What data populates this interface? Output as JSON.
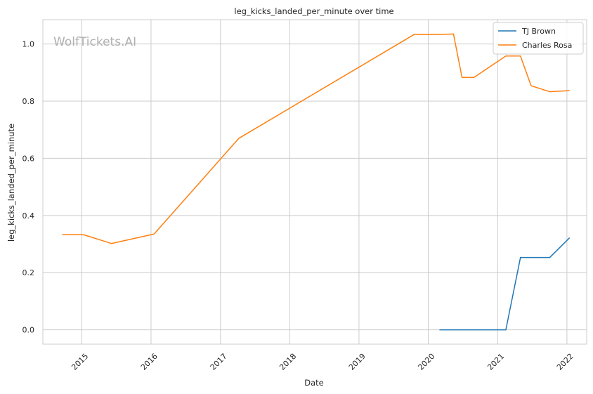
{
  "chart_data": {
    "type": "line",
    "title": "leg_kicks_landed_per_minute over time",
    "xlabel": "Date",
    "ylabel": "leg_kicks_landed_per_minute",
    "watermark": "WolfTickets.AI",
    "xlim": [
      "2014-06-10",
      "2022-04-15"
    ],
    "ylim": [
      -0.05,
      1.085
    ],
    "x_ticks": [
      "2015-01-01",
      "2016-01-01",
      "2017-01-01",
      "2018-01-01",
      "2019-01-01",
      "2020-01-01",
      "2021-01-01",
      "2022-01-01"
    ],
    "x_tick_labels": [
      "2015",
      "2016",
      "2017",
      "2018",
      "2019",
      "2020",
      "2021",
      "2022"
    ],
    "y_ticks": [
      0.0,
      0.2,
      0.4,
      0.6,
      0.8,
      1.0
    ],
    "y_tick_labels": [
      "0.0",
      "0.2",
      "0.4",
      "0.6",
      "0.8",
      "1.0"
    ],
    "grid": true,
    "legend_position": "top-right",
    "series": [
      {
        "name": "TJ Brown",
        "color": "#1f77b4",
        "points": [
          {
            "x": "2020-02-29",
            "y": 0.0
          },
          {
            "x": "2021-02-13",
            "y": 0.0
          },
          {
            "x": "2021-05-01",
            "y": 0.253
          },
          {
            "x": "2021-10-02",
            "y": 0.253
          },
          {
            "x": "2022-01-15",
            "y": 0.322
          }
        ]
      },
      {
        "name": "Charles Rosa",
        "color": "#ff7f0e",
        "points": [
          {
            "x": "2014-09-20",
            "y": 0.333
          },
          {
            "x": "2015-01-10",
            "y": 0.333
          },
          {
            "x": "2015-06-06",
            "y": 0.302
          },
          {
            "x": "2016-01-17",
            "y": 0.335
          },
          {
            "x": "2017-04-08",
            "y": 0.67
          },
          {
            "x": "2019-10-18",
            "y": 1.033
          },
          {
            "x": "2020-02-29",
            "y": 1.033
          },
          {
            "x": "2020-05-13",
            "y": 1.035
          },
          {
            "x": "2020-06-27",
            "y": 0.883
          },
          {
            "x": "2020-08-29",
            "y": 0.883
          },
          {
            "x": "2021-02-13",
            "y": 0.958
          },
          {
            "x": "2021-05-01",
            "y": 0.958
          },
          {
            "x": "2021-06-26",
            "y": 0.854
          },
          {
            "x": "2021-10-02",
            "y": 0.833
          },
          {
            "x": "2022-01-15",
            "y": 0.837
          }
        ]
      }
    ]
  }
}
